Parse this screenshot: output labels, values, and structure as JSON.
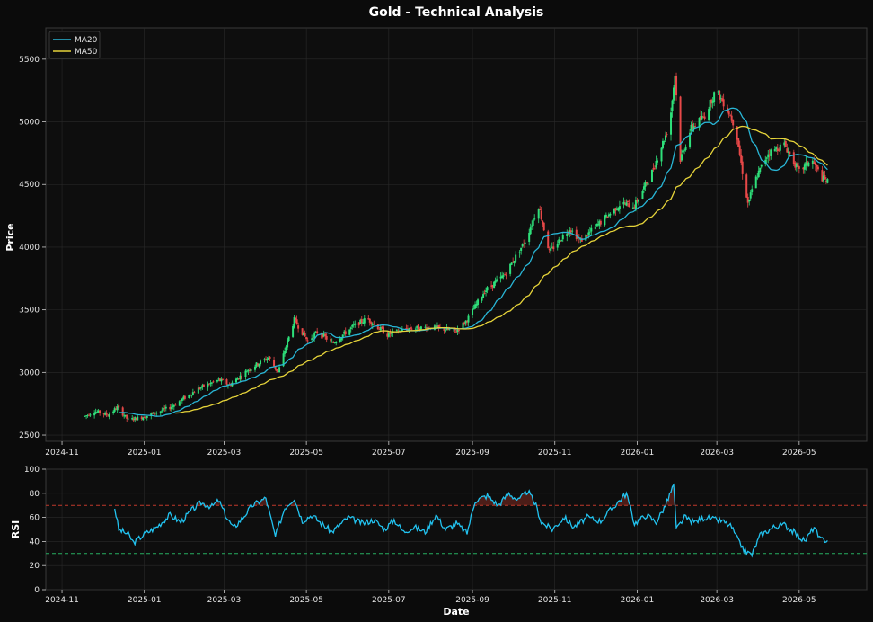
{
  "chart_data": [
    {
      "type": "candlestick",
      "title": "Gold - Technical Analysis",
      "ylabel": "Price",
      "xlabel": "",
      "ylim": [
        2450,
        5750
      ],
      "yticks": [
        2500,
        3000,
        3500,
        4000,
        4500,
        5000,
        5500
      ],
      "xticks": [
        "2024-11",
        "2025-01",
        "2025-03",
        "2025-05",
        "2025-07",
        "2025-09",
        "2025-11",
        "2026-01",
        "2026-03",
        "2026-05"
      ],
      "xlim": [
        "2024-10-20",
        "2026-06-20"
      ],
      "grid": true,
      "legend_position": "top-left",
      "price_path": {
        "start": "2024-11-18",
        "end": "2026-05-22",
        "anchors": [
          [
            "2024-11-18",
            2650
          ],
          [
            "2024-11-25",
            2690
          ],
          [
            "2024-12-05",
            2660
          ],
          [
            "2024-12-12",
            2720
          ],
          [
            "2024-12-20",
            2620
          ],
          [
            "2025-01-02",
            2650
          ],
          [
            "2025-01-20",
            2720
          ],
          [
            "2025-02-10",
            2870
          ],
          [
            "2025-02-25",
            2940
          ],
          [
            "2025-03-05",
            2900
          ],
          [
            "2025-03-20",
            3030
          ],
          [
            "2025-04-03",
            3120
          ],
          [
            "2025-04-10",
            3000
          ],
          [
            "2025-04-22",
            3420
          ],
          [
            "2025-05-02",
            3250
          ],
          [
            "2025-05-10",
            3330
          ],
          [
            "2025-05-20",
            3230
          ],
          [
            "2025-06-05",
            3370
          ],
          [
            "2025-06-15",
            3430
          ],
          [
            "2025-06-30",
            3300
          ],
          [
            "2025-07-15",
            3350
          ],
          [
            "2025-08-01",
            3360
          ],
          [
            "2025-08-20",
            3330
          ],
          [
            "2025-08-28",
            3420
          ],
          [
            "2025-09-10",
            3650
          ],
          [
            "2025-09-25",
            3780
          ],
          [
            "2025-10-10",
            4050
          ],
          [
            "2025-10-20",
            4330
          ],
          [
            "2025-10-28",
            3960
          ],
          [
            "2025-11-12",
            4150
          ],
          [
            "2025-11-20",
            4050
          ],
          [
            "2025-12-05",
            4200
          ],
          [
            "2025-12-20",
            4350
          ],
          [
            "2025-12-30",
            4330
          ],
          [
            "2026-01-12",
            4600
          ],
          [
            "2026-01-25",
            4980
          ],
          [
            "2026-01-29",
            5380
          ],
          [
            "2026-02-02",
            4700
          ],
          [
            "2026-02-10",
            4950
          ],
          [
            "2026-02-20",
            5050
          ],
          [
            "2026-02-28",
            5250
          ],
          [
            "2026-03-08",
            5120
          ],
          [
            "2026-03-15",
            4950
          ],
          [
            "2026-03-20",
            4600
          ],
          [
            "2026-03-24",
            4350
          ],
          [
            "2026-03-30",
            4550
          ],
          [
            "2026-04-08",
            4750
          ],
          [
            "2026-04-20",
            4820
          ],
          [
            "2026-05-01",
            4600
          ],
          [
            "2026-05-10",
            4700
          ],
          [
            "2026-05-18",
            4550
          ],
          [
            "2026-05-22",
            4520
          ]
        ]
      },
      "series": [
        {
          "name": "MA20",
          "color": "#29b6d6",
          "window": 20
        },
        {
          "name": "MA50",
          "color": "#e6d43a",
          "window": 50
        }
      ],
      "colors": {
        "up": "#2ee07a",
        "down": "#e84848"
      }
    },
    {
      "type": "line",
      "ylabel": "RSI",
      "xlabel": "Date",
      "ylim": [
        0,
        100
      ],
      "yticks": [
        0,
        20,
        40,
        60,
        80,
        100
      ],
      "xticks": [
        "2024-11",
        "2025-01",
        "2025-03",
        "2025-05",
        "2025-07",
        "2025-09",
        "2025-11",
        "2026-01",
        "2026-03",
        "2026-05"
      ],
      "hlines": [
        {
          "value": 70,
          "color": "#c0392b"
        },
        {
          "value": 30,
          "color": "#27ae60"
        }
      ],
      "series": [
        {
          "color": "#22c3f0",
          "start": "2024-12-10",
          "end": "2026-05-22",
          "anchors": [
            [
              "2024-12-10",
              68
            ],
            [
              "2024-12-13",
              50
            ],
            [
              "2024-12-20",
              46
            ],
            [
              "2024-12-24",
              39
            ],
            [
              "2025-01-01",
              46
            ],
            [
              "2025-01-10",
              52
            ],
            [
              "2025-01-20",
              62
            ],
            [
              "2025-01-28",
              56
            ],
            [
              "2025-02-05",
              66
            ],
            [
              "2025-02-12",
              72
            ],
            [
              "2025-02-20",
              69
            ],
            [
              "2025-02-25",
              74
            ],
            [
              "2025-03-03",
              60
            ],
            [
              "2025-03-08",
              51
            ],
            [
              "2025-03-15",
              60
            ],
            [
              "2025-03-22",
              70
            ],
            [
              "2025-04-01",
              76
            ],
            [
              "2025-04-08",
              44
            ],
            [
              "2025-04-15",
              68
            ],
            [
              "2025-04-22",
              76
            ],
            [
              "2025-04-28",
              57
            ],
            [
              "2025-05-05",
              62
            ],
            [
              "2025-05-12",
              55
            ],
            [
              "2025-05-20",
              48
            ],
            [
              "2025-06-01",
              60
            ],
            [
              "2025-06-12",
              55
            ],
            [
              "2025-06-20",
              58
            ],
            [
              "2025-06-28",
              50
            ],
            [
              "2025-07-05",
              58
            ],
            [
              "2025-07-12",
              48
            ],
            [
              "2025-07-20",
              52
            ],
            [
              "2025-07-28",
              48
            ],
            [
              "2025-08-05",
              62
            ],
            [
              "2025-08-12",
              50
            ],
            [
              "2025-08-20",
              55
            ],
            [
              "2025-08-28",
              47
            ],
            [
              "2025-09-03",
              74
            ],
            [
              "2025-09-12",
              78
            ],
            [
              "2025-09-20",
              70
            ],
            [
              "2025-09-28",
              80
            ],
            [
              "2025-10-05",
              74
            ],
            [
              "2025-10-12",
              82
            ],
            [
              "2025-10-18",
              70
            ],
            [
              "2025-10-22",
              56
            ],
            [
              "2025-10-30",
              50
            ],
            [
              "2025-11-08",
              60
            ],
            [
              "2025-11-15",
              52
            ],
            [
              "2025-11-25",
              60
            ],
            [
              "2025-12-05",
              57
            ],
            [
              "2025-12-12",
              66
            ],
            [
              "2025-12-24",
              80
            ],
            [
              "2025-12-30",
              55
            ],
            [
              "2026-01-08",
              62
            ],
            [
              "2026-01-15",
              56
            ],
            [
              "2026-01-22",
              70
            ],
            [
              "2026-01-28",
              87
            ],
            [
              "2026-01-30",
              50
            ],
            [
              "2026-02-05",
              60
            ],
            [
              "2026-02-12",
              56
            ],
            [
              "2026-02-20",
              60
            ],
            [
              "2026-02-28",
              58
            ],
            [
              "2026-03-05",
              57
            ],
            [
              "2026-03-12",
              52
            ],
            [
              "2026-03-17",
              40
            ],
            [
              "2026-03-22",
              32
            ],
            [
              "2026-03-27",
              29
            ],
            [
              "2026-04-02",
              45
            ],
            [
              "2026-04-12",
              52
            ],
            [
              "2026-04-20",
              54
            ],
            [
              "2026-04-28",
              47
            ],
            [
              "2026-05-05",
              40
            ],
            [
              "2026-05-12",
              52
            ],
            [
              "2026-05-16",
              42
            ],
            [
              "2026-05-22",
              41
            ]
          ]
        }
      ]
    }
  ]
}
